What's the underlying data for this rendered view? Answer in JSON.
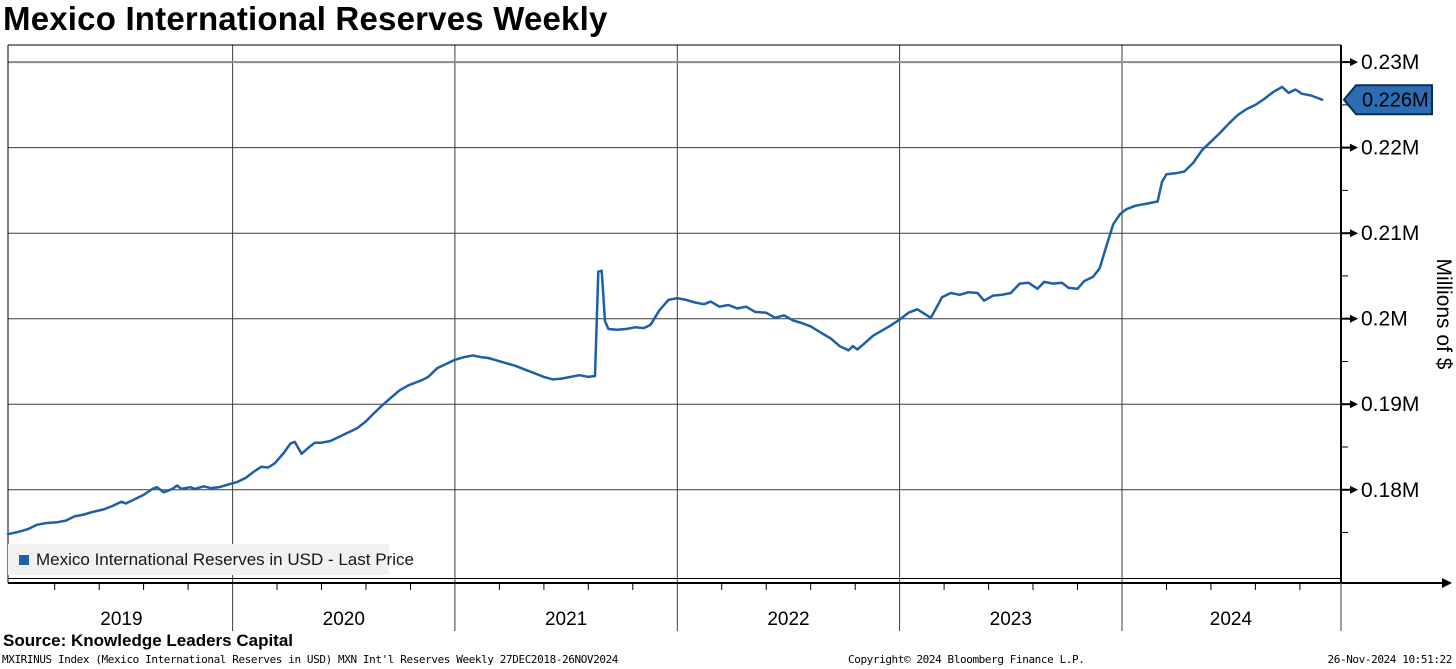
{
  "title": "Mexico International Reserves Weekly",
  "legend": {
    "marker_color": "#2062a8",
    "label": "Mexico International Reserves in USD - Last Price"
  },
  "source_line": "Source: Knowledge Leaders Capital",
  "footer": {
    "security_line": "MXIRINUS Index (Mexico International Reserves in USD) MXN Int'l Reserves  Weekly 27DEC2018-26NOV2024",
    "copyright": "Copyright© 2024 Bloomberg Finance L.P.",
    "timestamp": "26-Nov-2024 10:51:22"
  },
  "colors": {
    "line": "#1d5fa8",
    "callout_fill": "#2e6cb4",
    "callout_border": "#0c2d52",
    "grid": "#3c3c3c",
    "grid_top": "#8c8c8c",
    "axis": "#000000",
    "legend_bg": "#f1f1ef"
  },
  "chart_data": {
    "type": "line",
    "title": "Mexico International Reserves Weekly",
    "xlabel": "",
    "ylabel": "Millions of $",
    "x_range": [
      2018.99,
      2024.985
    ],
    "y_range": [
      0.1691,
      0.232
    ],
    "grid": true,
    "legend_position": "bottom-left",
    "y_ticks": [
      {
        "value": 0.23,
        "label": "0.23M"
      },
      {
        "value": 0.22,
        "label": "0.22M"
      },
      {
        "value": 0.21,
        "label": "0.21M"
      },
      {
        "value": 0.2,
        "label": "0.2M"
      },
      {
        "value": 0.19,
        "label": "0.19M"
      },
      {
        "value": 0.18,
        "label": "0.18M"
      }
    ],
    "y_minor_ticks": [
      0.225,
      0.215,
      0.205,
      0.195,
      0.185,
      0.175
    ],
    "x_year_lines": [
      2020,
      2021,
      2022,
      2023,
      2024
    ],
    "x_labels": [
      {
        "label": "2019",
        "pos": 2019.5
      },
      {
        "label": "2020",
        "pos": 2020.5
      },
      {
        "label": "2021",
        "pos": 2021.5
      },
      {
        "label": "2022",
        "pos": 2022.5
      },
      {
        "label": "2023",
        "pos": 2023.5
      },
      {
        "label": "2024",
        "pos": 2024.49
      }
    ],
    "last_price": {
      "value": 0.2256,
      "label": "0.226M"
    },
    "series": [
      {
        "name": "Mexico International Reserves in USD - Last Price",
        "color": "#1d5fa8",
        "points": [
          [
            2018.99,
            0.1748
          ],
          [
            2019.04,
            0.1751
          ],
          [
            2019.08,
            0.1754
          ],
          [
            2019.12,
            0.1759
          ],
          [
            2019.16,
            0.1761
          ],
          [
            2019.21,
            0.1762
          ],
          [
            2019.25,
            0.1764
          ],
          [
            2019.29,
            0.1769
          ],
          [
            2019.33,
            0.1771
          ],
          [
            2019.37,
            0.1774
          ],
          [
            2019.42,
            0.1777
          ],
          [
            2019.46,
            0.1781
          ],
          [
            2019.5,
            0.1786
          ],
          [
            2019.52,
            0.1784
          ],
          [
            2019.56,
            0.1789
          ],
          [
            2019.6,
            0.1794
          ],
          [
            2019.64,
            0.1801
          ],
          [
            2019.66,
            0.1803
          ],
          [
            2019.69,
            0.1797
          ],
          [
            2019.73,
            0.1801
          ],
          [
            2019.75,
            0.1805
          ],
          [
            2019.77,
            0.1801
          ],
          [
            2019.81,
            0.1803
          ],
          [
            2019.83,
            0.1801
          ],
          [
            2019.87,
            0.1804
          ],
          [
            2019.9,
            0.1802
          ],
          [
            2019.94,
            0.1803
          ],
          [
            2019.98,
            0.1806
          ],
          [
            2020.02,
            0.1809
          ],
          [
            2020.06,
            0.1814
          ],
          [
            2020.1,
            0.1822
          ],
          [
            2020.13,
            0.1827
          ],
          [
            2020.16,
            0.1826
          ],
          [
            2020.19,
            0.1831
          ],
          [
            2020.23,
            0.1843
          ],
          [
            2020.26,
            0.1854
          ],
          [
            2020.28,
            0.1856
          ],
          [
            2020.31,
            0.1842
          ],
          [
            2020.34,
            0.1849
          ],
          [
            2020.37,
            0.1855
          ],
          [
            2020.4,
            0.1855
          ],
          [
            2020.44,
            0.1857
          ],
          [
            2020.48,
            0.1862
          ],
          [
            2020.52,
            0.1867
          ],
          [
            2020.56,
            0.1872
          ],
          [
            2020.6,
            0.188
          ],
          [
            2020.63,
            0.1888
          ],
          [
            2020.67,
            0.1898
          ],
          [
            2020.71,
            0.1907
          ],
          [
            2020.75,
            0.1916
          ],
          [
            2020.79,
            0.1922
          ],
          [
            2020.83,
            0.1926
          ],
          [
            2020.85,
            0.1928
          ],
          [
            2020.88,
            0.1932
          ],
          [
            2020.92,
            0.1942
          ],
          [
            2020.96,
            0.1947
          ],
          [
            2021.0,
            0.1952
          ],
          [
            2021.04,
            0.1955
          ],
          [
            2021.08,
            0.1957
          ],
          [
            2021.12,
            0.1955
          ],
          [
            2021.15,
            0.1954
          ],
          [
            2021.19,
            0.1951
          ],
          [
            2021.23,
            0.1948
          ],
          [
            2021.27,
            0.1945
          ],
          [
            2021.31,
            0.1941
          ],
          [
            2021.35,
            0.1937
          ],
          [
            2021.4,
            0.1932
          ],
          [
            2021.44,
            0.1929
          ],
          [
            2021.48,
            0.193
          ],
          [
            2021.52,
            0.1932
          ],
          [
            2021.56,
            0.1934
          ],
          [
            2021.6,
            0.1932
          ],
          [
            2021.63,
            0.1933
          ],
          [
            2021.645,
            0.2055
          ],
          [
            2021.66,
            0.2056
          ],
          [
            2021.675,
            0.1997
          ],
          [
            2021.69,
            0.1988
          ],
          [
            2021.73,
            0.1987
          ],
          [
            2021.77,
            0.1988
          ],
          [
            2021.81,
            0.199
          ],
          [
            2021.85,
            0.1989
          ],
          [
            2021.88,
            0.1993
          ],
          [
            2021.92,
            0.201
          ],
          [
            2021.96,
            0.2022
          ],
          [
            2022.0,
            0.2024
          ],
          [
            2022.04,
            0.2022
          ],
          [
            2022.08,
            0.2019
          ],
          [
            2022.12,
            0.2017
          ],
          [
            2022.15,
            0.202
          ],
          [
            2022.19,
            0.2014
          ],
          [
            2022.23,
            0.2016
          ],
          [
            2022.27,
            0.2012
          ],
          [
            2022.31,
            0.2014
          ],
          [
            2022.35,
            0.2008
          ],
          [
            2022.4,
            0.2007
          ],
          [
            2022.44,
            0.2001
          ],
          [
            2022.48,
            0.2004
          ],
          [
            2022.52,
            0.1998
          ],
          [
            2022.56,
            0.1995
          ],
          [
            2022.6,
            0.1991
          ],
          [
            2022.65,
            0.1983
          ],
          [
            2022.69,
            0.1977
          ],
          [
            2022.73,
            0.1968
          ],
          [
            2022.77,
            0.1963
          ],
          [
            2022.79,
            0.1968
          ],
          [
            2022.81,
            0.1964
          ],
          [
            2022.85,
            0.1973
          ],
          [
            2022.88,
            0.198
          ],
          [
            2022.92,
            0.1986
          ],
          [
            2022.96,
            0.1992
          ],
          [
            2023.0,
            0.1999
          ],
          [
            2023.04,
            0.2007
          ],
          [
            2023.08,
            0.2011
          ],
          [
            2023.11,
            0.2006
          ],
          [
            2023.14,
            0.2001
          ],
          [
            2023.17,
            0.2015
          ],
          [
            2023.19,
            0.2025
          ],
          [
            2023.23,
            0.203
          ],
          [
            2023.27,
            0.2028
          ],
          [
            2023.31,
            0.2031
          ],
          [
            2023.35,
            0.203
          ],
          [
            2023.38,
            0.2021
          ],
          [
            2023.42,
            0.2027
          ],
          [
            2023.46,
            0.2028
          ],
          [
            2023.5,
            0.203
          ],
          [
            2023.54,
            0.2041
          ],
          [
            2023.58,
            0.2042
          ],
          [
            2023.62,
            0.2035
          ],
          [
            2023.65,
            0.2043
          ],
          [
            2023.69,
            0.2041
          ],
          [
            2023.73,
            0.2042
          ],
          [
            2023.76,
            0.2036
          ],
          [
            2023.8,
            0.2035
          ],
          [
            2023.83,
            0.2044
          ],
          [
            2023.87,
            0.2049
          ],
          [
            2023.9,
            0.2059
          ],
          [
            2023.93,
            0.2085
          ],
          [
            2023.96,
            0.211
          ],
          [
            2023.99,
            0.2122
          ],
          [
            2024.02,
            0.2128
          ],
          [
            2024.06,
            0.2132
          ],
          [
            2024.1,
            0.2134
          ],
          [
            2024.14,
            0.2136
          ],
          [
            2024.16,
            0.2137
          ],
          [
            2024.18,
            0.216
          ],
          [
            2024.2,
            0.2169
          ],
          [
            2024.24,
            0.217
          ],
          [
            2024.28,
            0.2172
          ],
          [
            2024.32,
            0.2182
          ],
          [
            2024.36,
            0.2197
          ],
          [
            2024.4,
            0.2207
          ],
          [
            2024.44,
            0.2217
          ],
          [
            2024.48,
            0.2228
          ],
          [
            2024.52,
            0.2238
          ],
          [
            2024.56,
            0.2245
          ],
          [
            2024.6,
            0.225
          ],
          [
            2024.64,
            0.2257
          ],
          [
            2024.68,
            0.2265
          ],
          [
            2024.72,
            0.2271
          ],
          [
            2024.75,
            0.2264
          ],
          [
            2024.78,
            0.2268
          ],
          [
            2024.81,
            0.2263
          ],
          [
            2024.85,
            0.2261
          ],
          [
            2024.88,
            0.2258
          ],
          [
            2024.9,
            0.2256
          ]
        ]
      }
    ]
  }
}
